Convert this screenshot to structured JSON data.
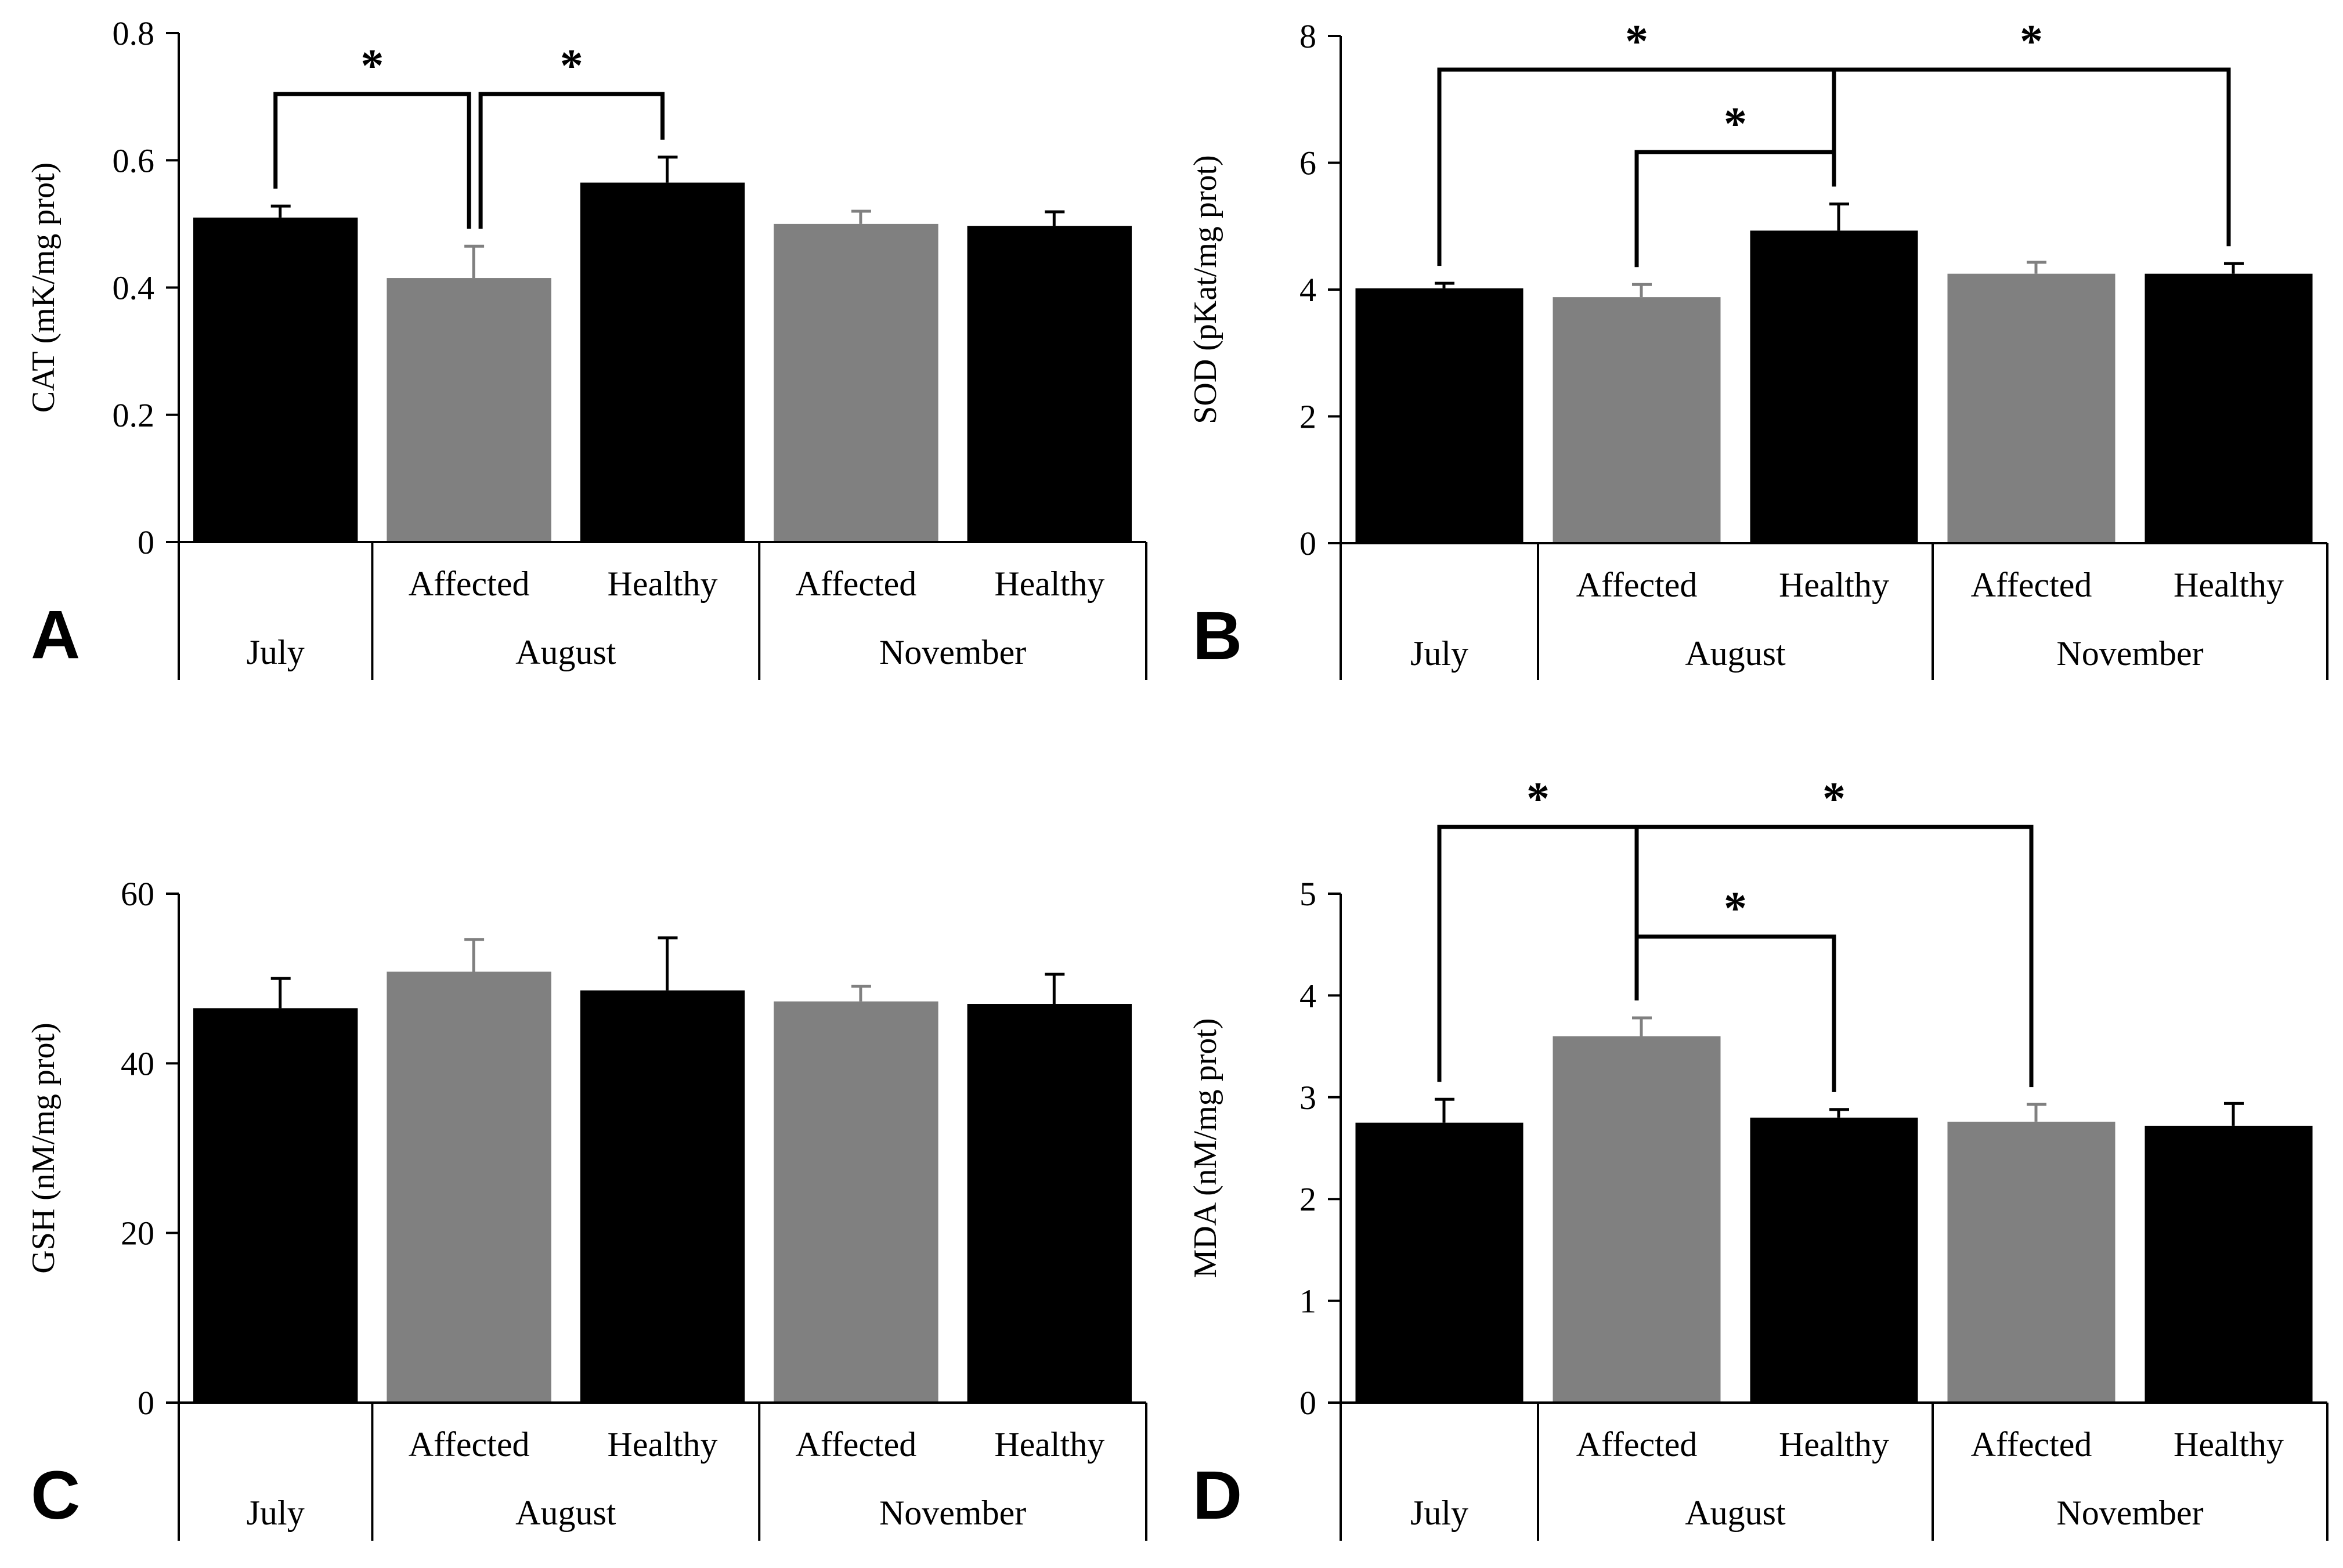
{
  "figure": {
    "colors": {
      "dark": "#000000",
      "gray": "#808080",
      "background": "#ffffff"
    }
  },
  "chart_data": [
    {
      "type": "bar",
      "panel": "A",
      "ylabel": "CAT (mK/mg prot)",
      "ylim": [
        0,
        0.8
      ],
      "yticks": [
        0,
        0.2,
        0.4,
        0.6,
        0.8
      ],
      "ytick_labels": [
        "0",
        "0.2",
        "0.4",
        "0.6",
        "0.8"
      ],
      "bars": [
        {
          "month": "July",
          "group": "",
          "value": 0.51,
          "error": 0.018,
          "color": "#000000"
        },
        {
          "month": "August",
          "group": "Affected",
          "value": 0.415,
          "error": 0.05,
          "color": "#808080"
        },
        {
          "month": "August",
          "group": "Healthy",
          "value": 0.565,
          "error": 0.04,
          "color": "#000000"
        },
        {
          "month": "November",
          "group": "Affected",
          "value": 0.5,
          "error": 0.02,
          "color": "#808080"
        },
        {
          "month": "November",
          "group": "Healthy",
          "value": 0.497,
          "error": 0.022,
          "color": "#000000"
        }
      ],
      "months": [
        "July",
        "August",
        "November"
      ],
      "significance": [
        {
          "from": 0,
          "to": 1,
          "label": "*",
          "level": 0
        },
        {
          "from": 1,
          "to": 2,
          "label": "*",
          "level": 0
        }
      ]
    },
    {
      "type": "bar",
      "panel": "B",
      "ylabel": "SOD (pKat/mg prot)",
      "ylim": [
        0,
        8
      ],
      "yticks": [
        0,
        2,
        4,
        6,
        8
      ],
      "ytick_labels": [
        "0",
        "2",
        "4",
        "6",
        "8"
      ],
      "bars": [
        {
          "month": "July",
          "group": "",
          "value": 4.02,
          "error": 0.08,
          "color": "#000000"
        },
        {
          "month": "August",
          "group": "Affected",
          "value": 3.88,
          "error": 0.2,
          "color": "#808080"
        },
        {
          "month": "August",
          "group": "Healthy",
          "value": 4.93,
          "error": 0.42,
          "color": "#000000"
        },
        {
          "month": "November",
          "group": "Affected",
          "value": 4.25,
          "error": 0.18,
          "color": "#808080"
        },
        {
          "month": "November",
          "group": "Healthy",
          "value": 4.25,
          "error": 0.16,
          "color": "#000000"
        }
      ],
      "months": [
        "July",
        "August",
        "November"
      ],
      "significance": [
        {
          "from": 0,
          "to": 2,
          "label": "*",
          "level": 1
        },
        {
          "from": 1,
          "to": 2,
          "label": "*",
          "level": 0
        },
        {
          "from": 2,
          "to": 4,
          "label": "*",
          "level": 1
        }
      ]
    },
    {
      "type": "bar",
      "panel": "C",
      "ylabel": "GSH (nM/mg prot)",
      "ylim": [
        0,
        60
      ],
      "yticks": [
        0,
        20,
        40,
        60
      ],
      "ytick_labels": [
        "0",
        "20",
        "40",
        "60"
      ],
      "bars": [
        {
          "month": "July",
          "group": "",
          "value": 46.5,
          "error": 3.5,
          "color": "#000000"
        },
        {
          "month": "August",
          "group": "Affected",
          "value": 50.8,
          "error": 3.8,
          "color": "#808080"
        },
        {
          "month": "August",
          "group": "Healthy",
          "value": 48.6,
          "error": 6.2,
          "color": "#000000"
        },
        {
          "month": "November",
          "group": "Affected",
          "value": 47.3,
          "error": 1.8,
          "color": "#808080"
        },
        {
          "month": "November",
          "group": "Healthy",
          "value": 47.0,
          "error": 3.5,
          "color": "#000000"
        }
      ],
      "months": [
        "July",
        "August",
        "November"
      ],
      "significance": []
    },
    {
      "type": "bar",
      "panel": "D",
      "ylabel": "MDA (nM/mg prot)",
      "ylim": [
        0,
        5
      ],
      "yticks": [
        0,
        1,
        2,
        3,
        4,
        5
      ],
      "ytick_labels": [
        "0",
        "1",
        "2",
        "3",
        "4",
        "5"
      ],
      "bars": [
        {
          "month": "July",
          "group": "",
          "value": 2.75,
          "error": 0.23,
          "color": "#000000"
        },
        {
          "month": "August",
          "group": "Affected",
          "value": 3.6,
          "error": 0.18,
          "color": "#808080"
        },
        {
          "month": "August",
          "group": "Healthy",
          "value": 2.8,
          "error": 0.08,
          "color": "#000000"
        },
        {
          "month": "November",
          "group": "Affected",
          "value": 2.76,
          "error": 0.17,
          "color": "#808080"
        },
        {
          "month": "November",
          "group": "Healthy",
          "value": 2.72,
          "error": 0.22,
          "color": "#000000"
        }
      ],
      "months": [
        "July",
        "August",
        "November"
      ],
      "significance": [
        {
          "from": 0,
          "to": 1,
          "label": "*",
          "level": 1
        },
        {
          "from": 1,
          "to": 3,
          "label": "*",
          "level": 1
        },
        {
          "from": 1,
          "to": 2,
          "label": "*",
          "level": 0
        }
      ]
    }
  ]
}
